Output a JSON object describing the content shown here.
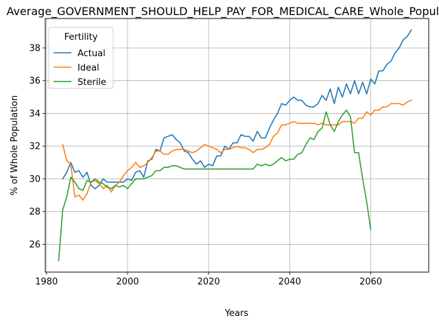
{
  "chart_data": {
    "type": "line",
    "title": "Average_GOVERNMENT_SHOULD_HELP_PAY_FOR_MEDICAL_CARE_Whole_Population",
    "xlabel": "Years",
    "ylabel": "% of Whole Population",
    "xlim": [
      1979.7,
      2074.3
    ],
    "ylim": [
      24.3,
      39.8
    ],
    "xticks": [
      1980,
      2000,
      2020,
      2040,
      2060
    ],
    "yticks": [
      26,
      28,
      30,
      32,
      34,
      36,
      38
    ],
    "grid": true,
    "legend": {
      "title": "Fertility",
      "placement": "top-left"
    },
    "series": [
      {
        "name": "Actual",
        "color": "#1f77b4",
        "points": [
          [
            1984,
            30.0
          ],
          [
            1985,
            30.4
          ],
          [
            1986,
            31.0
          ],
          [
            1987,
            30.4
          ],
          [
            1988,
            30.5
          ],
          [
            1989,
            30.1
          ],
          [
            1990,
            30.4
          ],
          [
            1991,
            29.6
          ],
          [
            1992,
            29.4
          ],
          [
            1993,
            29.6
          ],
          [
            1994,
            30.0
          ],
          [
            1995,
            29.8
          ],
          [
            1996,
            29.8
          ],
          [
            1997,
            29.8
          ],
          [
            1998,
            29.8
          ],
          [
            1999,
            29.8
          ],
          [
            2000,
            30.0
          ],
          [
            2001,
            29.9
          ],
          [
            2002,
            30.4
          ],
          [
            2003,
            30.5
          ],
          [
            2004,
            30.1
          ],
          [
            2005,
            31.1
          ],
          [
            2006,
            31.2
          ],
          [
            2007,
            31.8
          ],
          [
            2008,
            31.7
          ],
          [
            2009,
            32.5
          ],
          [
            2010,
            32.6
          ],
          [
            2011,
            32.7
          ],
          [
            2012,
            32.4
          ],
          [
            2013,
            32.2
          ],
          [
            2014,
            31.7
          ],
          [
            2015,
            31.6
          ],
          [
            2016,
            31.2
          ],
          [
            2017,
            30.9
          ],
          [
            2018,
            31.1
          ],
          [
            2019,
            30.7
          ],
          [
            2020,
            30.9
          ],
          [
            2021,
            30.8
          ],
          [
            2022,
            31.4
          ],
          [
            2023,
            31.4
          ],
          [
            2024,
            32.0
          ],
          [
            2025,
            31.8
          ],
          [
            2026,
            32.2
          ],
          [
            2027,
            32.2
          ],
          [
            2028,
            32.7
          ],
          [
            2029,
            32.6
          ],
          [
            2030,
            32.6
          ],
          [
            2031,
            32.3
          ],
          [
            2032,
            32.9
          ],
          [
            2033,
            32.5
          ],
          [
            2034,
            32.5
          ],
          [
            2035,
            33.1
          ],
          [
            2036,
            33.6
          ],
          [
            2037,
            34.0
          ],
          [
            2038,
            34.6
          ],
          [
            2039,
            34.5
          ],
          [
            2040,
            34.8
          ],
          [
            2041,
            35.0
          ],
          [
            2042,
            34.8
          ],
          [
            2043,
            34.8
          ],
          [
            2044,
            34.5
          ],
          [
            2045,
            34.4
          ],
          [
            2046,
            34.4
          ],
          [
            2047,
            34.6
          ],
          [
            2048,
            35.1
          ],
          [
            2049,
            34.8
          ],
          [
            2050,
            35.5
          ],
          [
            2051,
            34.6
          ],
          [
            2052,
            35.6
          ],
          [
            2053,
            35.0
          ],
          [
            2054,
            35.8
          ],
          [
            2055,
            35.2
          ],
          [
            2056,
            36.0
          ],
          [
            2057,
            35.2
          ],
          [
            2058,
            35.9
          ],
          [
            2059,
            35.2
          ],
          [
            2060,
            36.1
          ],
          [
            2061,
            35.8
          ],
          [
            2062,
            36.6
          ],
          [
            2063,
            36.6
          ],
          [
            2064,
            37.0
          ],
          [
            2065,
            37.2
          ],
          [
            2066,
            37.7
          ],
          [
            2067,
            38.0
          ],
          [
            2068,
            38.5
          ],
          [
            2069,
            38.7
          ],
          [
            2070,
            39.1
          ]
        ]
      },
      {
        "name": "Ideal",
        "color": "#ff7f0e",
        "points": [
          [
            1984,
            32.1
          ],
          [
            1985,
            31.1
          ],
          [
            1986,
            30.9
          ],
          [
            1987,
            28.9
          ],
          [
            1988,
            29.0
          ],
          [
            1989,
            28.7
          ],
          [
            1990,
            29.1
          ],
          [
            1991,
            29.8
          ],
          [
            1992,
            29.9
          ],
          [
            1993,
            29.7
          ],
          [
            1994,
            29.4
          ],
          [
            1995,
            29.6
          ],
          [
            1996,
            29.2
          ],
          [
            1997,
            29.6
          ],
          [
            1998,
            29.8
          ],
          [
            1999,
            30.2
          ],
          [
            2000,
            30.5
          ],
          [
            2001,
            30.7
          ],
          [
            2002,
            31.0
          ],
          [
            2003,
            30.7
          ],
          [
            2004,
            30.8
          ],
          [
            2005,
            31.0
          ],
          [
            2006,
            31.3
          ],
          [
            2007,
            31.7
          ],
          [
            2008,
            31.7
          ],
          [
            2009,
            31.5
          ],
          [
            2010,
            31.5
          ],
          [
            2011,
            31.7
          ],
          [
            2012,
            31.8
          ],
          [
            2013,
            31.8
          ],
          [
            2014,
            31.8
          ],
          [
            2015,
            31.7
          ],
          [
            2016,
            31.6
          ],
          [
            2017,
            31.7
          ],
          [
            2018,
            31.9
          ],
          [
            2019,
            32.1
          ],
          [
            2020,
            32.0
          ],
          [
            2021,
            31.9
          ],
          [
            2022,
            31.8
          ],
          [
            2023,
            31.6
          ],
          [
            2024,
            31.8
          ],
          [
            2025,
            31.8
          ],
          [
            2026,
            31.9
          ],
          [
            2027,
            32.0
          ],
          [
            2028,
            31.9
          ],
          [
            2029,
            31.9
          ],
          [
            2030,
            31.8
          ],
          [
            2031,
            31.6
          ],
          [
            2032,
            31.8
          ],
          [
            2033,
            31.8
          ],
          [
            2034,
            31.9
          ],
          [
            2035,
            32.1
          ],
          [
            2036,
            32.6
          ],
          [
            2037,
            32.8
          ],
          [
            2038,
            33.3
          ],
          [
            2039,
            33.3
          ],
          [
            2040,
            33.4
          ],
          [
            2041,
            33.5
          ],
          [
            2042,
            33.4
          ],
          [
            2043,
            33.4
          ],
          [
            2044,
            33.4
          ],
          [
            2045,
            33.4
          ],
          [
            2046,
            33.4
          ],
          [
            2047,
            33.3
          ],
          [
            2048,
            33.4
          ],
          [
            2049,
            33.3
          ],
          [
            2050,
            33.3
          ],
          [
            2051,
            33.3
          ],
          [
            2052,
            33.3
          ],
          [
            2053,
            33.5
          ],
          [
            2054,
            33.5
          ],
          [
            2055,
            33.5
          ],
          [
            2056,
            33.4
          ],
          [
            2057,
            33.7
          ],
          [
            2058,
            33.7
          ],
          [
            2059,
            34.1
          ],
          [
            2060,
            33.9
          ],
          [
            2061,
            34.2
          ],
          [
            2062,
            34.2
          ],
          [
            2063,
            34.4
          ],
          [
            2064,
            34.4
          ],
          [
            2065,
            34.6
          ],
          [
            2066,
            34.6
          ],
          [
            2067,
            34.6
          ],
          [
            2068,
            34.5
          ],
          [
            2069,
            34.7
          ],
          [
            2070,
            34.8
          ]
        ]
      },
      {
        "name": "Sterile",
        "color": "#2ca02c",
        "points": [
          [
            1983,
            25.0
          ],
          [
            1984,
            28.1
          ],
          [
            1985,
            28.9
          ],
          [
            1986,
            30.1
          ],
          [
            1987,
            29.8
          ],
          [
            1988,
            29.4
          ],
          [
            1989,
            29.3
          ],
          [
            1990,
            29.9
          ],
          [
            1991,
            29.8
          ],
          [
            1992,
            30.0
          ],
          [
            1993,
            29.8
          ],
          [
            1994,
            29.7
          ],
          [
            1995,
            29.5
          ],
          [
            1996,
            29.4
          ],
          [
            1997,
            29.6
          ],
          [
            1998,
            29.5
          ],
          [
            1999,
            29.6
          ],
          [
            2000,
            29.4
          ],
          [
            2001,
            29.7
          ],
          [
            2002,
            30.0
          ],
          [
            2003,
            30.0
          ],
          [
            2004,
            30.0
          ],
          [
            2005,
            30.1
          ],
          [
            2006,
            30.2
          ],
          [
            2007,
            30.5
          ],
          [
            2008,
            30.5
          ],
          [
            2009,
            30.7
          ],
          [
            2010,
            30.7
          ],
          [
            2011,
            30.8
          ],
          [
            2012,
            30.8
          ],
          [
            2013,
            30.7
          ],
          [
            2014,
            30.6
          ],
          [
            2015,
            30.6
          ],
          [
            2016,
            30.6
          ],
          [
            2017,
            30.6
          ],
          [
            2018,
            30.6
          ],
          [
            2019,
            30.6
          ],
          [
            2020,
            30.6
          ],
          [
            2021,
            30.6
          ],
          [
            2022,
            30.6
          ],
          [
            2023,
            30.6
          ],
          [
            2024,
            30.6
          ],
          [
            2025,
            30.6
          ],
          [
            2026,
            30.6
          ],
          [
            2027,
            30.6
          ],
          [
            2028,
            30.6
          ],
          [
            2029,
            30.6
          ],
          [
            2030,
            30.6
          ],
          [
            2031,
            30.6
          ],
          [
            2032,
            30.9
          ],
          [
            2033,
            30.8
          ],
          [
            2034,
            30.9
          ],
          [
            2035,
            30.8
          ],
          [
            2036,
            30.9
          ],
          [
            2037,
            31.1
          ],
          [
            2038,
            31.3
          ],
          [
            2039,
            31.1
          ],
          [
            2040,
            31.2
          ],
          [
            2041,
            31.2
          ],
          [
            2042,
            31.5
          ],
          [
            2043,
            31.6
          ],
          [
            2044,
            32.1
          ],
          [
            2045,
            32.5
          ],
          [
            2046,
            32.4
          ],
          [
            2047,
            32.9
          ],
          [
            2048,
            33.1
          ],
          [
            2049,
            34.1
          ],
          [
            2050,
            33.3
          ],
          [
            2051,
            32.9
          ],
          [
            2052,
            33.5
          ],
          [
            2053,
            33.9
          ],
          [
            2054,
            34.2
          ],
          [
            2055,
            33.8
          ],
          [
            2056,
            31.6
          ],
          [
            2057,
            31.6
          ],
          [
            2058,
            30.0
          ],
          [
            2059,
            28.6
          ],
          [
            2060,
            26.9
          ]
        ]
      }
    ]
  }
}
